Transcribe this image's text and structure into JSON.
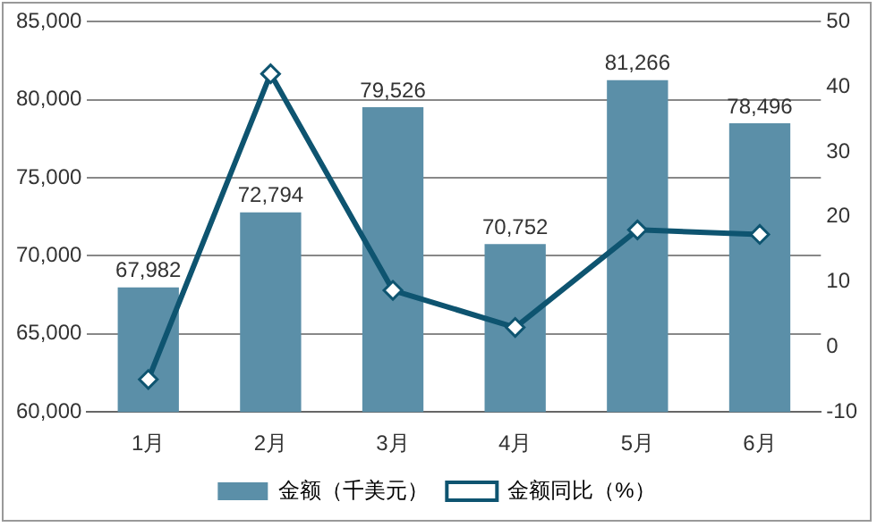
{
  "chart_data": {
    "type": "bar",
    "categories": [
      "1月",
      "2月",
      "3月",
      "4月",
      "5月",
      "6月"
    ],
    "series": [
      {
        "name": "金额（千美元）",
        "color": "#5b8fa8",
        "values": [
          67982,
          72794,
          79526,
          70752,
          81266,
          78496
        ],
        "value_labels": [
          "67,982",
          "72,794",
          "79,526",
          "70,752",
          "81,266",
          "78,496"
        ]
      },
      {
        "name": "金额同比（%）",
        "type": "line",
        "axis": "y2",
        "color": "#0e5470",
        "values": [
          -5,
          42,
          8.7,
          3,
          18,
          17.3
        ],
        "marker": "diamond"
      }
    ],
    "ylim": [
      60000,
      85000
    ],
    "yticks": [
      {
        "value": 60000,
        "label": "60,000"
      },
      {
        "value": 65000,
        "label": "65,000"
      },
      {
        "value": 70000,
        "label": "70,000"
      },
      {
        "value": 75000,
        "label": "75,000"
      },
      {
        "value": 80000,
        "label": "80,000"
      },
      {
        "value": 85000,
        "label": "85,000"
      }
    ],
    "y2lim": [
      -10,
      50
    ],
    "y2ticks": [
      -10,
      0,
      10,
      20,
      30,
      40,
      50
    ],
    "grid": "y",
    "legend": "bottom"
  }
}
